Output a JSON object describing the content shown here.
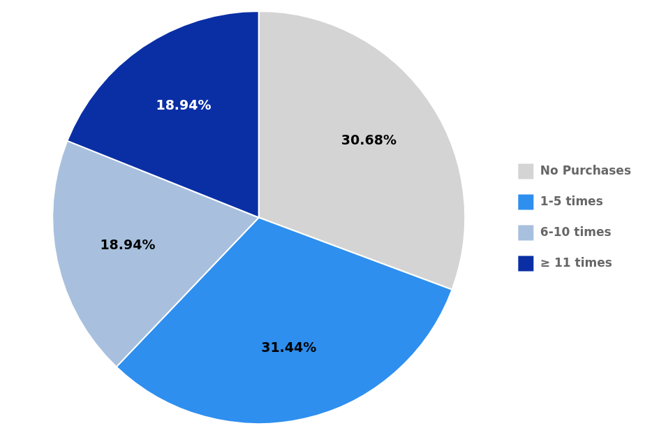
{
  "chart_data": {
    "type": "pie",
    "categories": [
      "No Purchases",
      "1-5 times",
      "6-10 times",
      "≥ 11 times"
    ],
    "values": [
      30.68,
      31.44,
      18.94,
      18.94
    ],
    "value_labels": [
      "30.68%",
      "31.44%",
      "18.94%",
      "18.94%"
    ],
    "colors": [
      "#d4d4d4",
      "#2e8fef",
      "#a8c0de",
      "#0a2fa5"
    ],
    "data_labels": true,
    "legend": "right"
  }
}
